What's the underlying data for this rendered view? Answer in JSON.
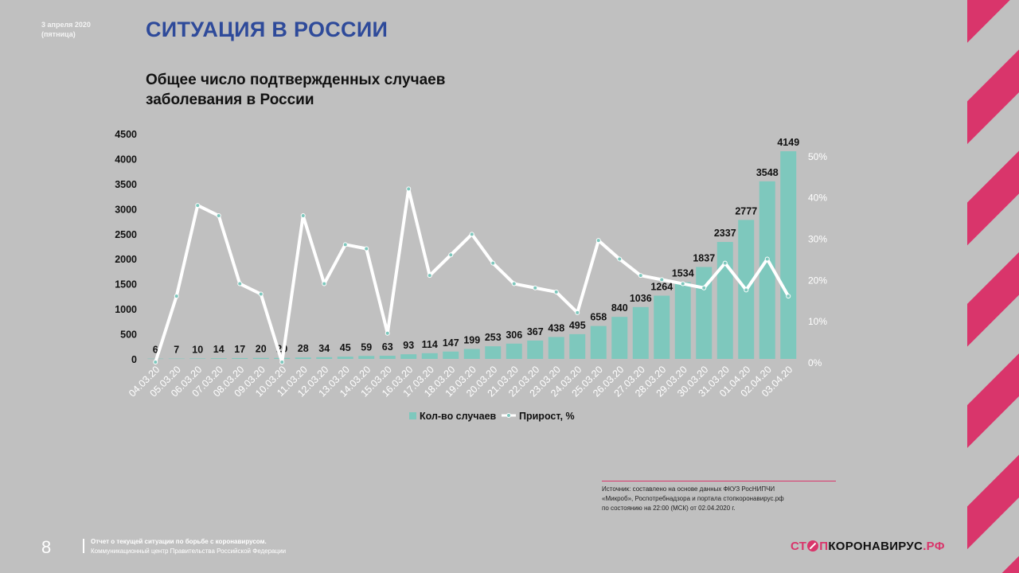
{
  "header": {
    "date_line1": "3 апреля 2020",
    "date_line2": "(пятница)",
    "title": "СИТУАЦИЯ В РОССИИ",
    "subtitle": "Общее число подтвержденных случаев заболевания в России"
  },
  "chart_data": {
    "type": "bar+line",
    "title": "Общее число подтвержденных случаев заболевания в России",
    "categories": [
      "04.03.20",
      "05.03.20",
      "06.03.20",
      "07.03.20",
      "08.03.20",
      "09.03.20",
      "10.03.20",
      "11.03.20",
      "12.03.20",
      "13.03.20",
      "14.03.20",
      "15.03.20",
      "16.03.20",
      "17.03.20",
      "18.03.20",
      "19.03.20",
      "20.03.20",
      "21.03.20",
      "22.03.20",
      "23.03.20",
      "24.03.20",
      "25.03.20",
      "26.03.20",
      "27.03.20",
      "28.03.20",
      "29.03.20",
      "30.03.20",
      "31.03.20",
      "01.04.20",
      "02.04.20",
      "03.04.20"
    ],
    "series": [
      {
        "name": "Кол-во случаев",
        "type": "bar",
        "axis": "left",
        "color": "#7ec8bd",
        "values": [
          6,
          7,
          10,
          14,
          17,
          20,
          20,
          28,
          34,
          45,
          59,
          63,
          93,
          114,
          147,
          199,
          253,
          306,
          367,
          438,
          495,
          658,
          840,
          1036,
          1264,
          1534,
          1837,
          2337,
          2777,
          3548,
          4149
        ]
      },
      {
        "name": "Прирост, %",
        "type": "line",
        "axis": "right",
        "color": "#ffffff",
        "values": [
          0,
          16,
          38,
          35.5,
          19,
          16.5,
          0,
          35.5,
          19,
          28.5,
          27.5,
          7,
          42,
          21,
          26,
          31,
          24,
          19,
          18,
          17,
          12,
          29.5,
          25,
          21,
          20,
          19,
          18,
          24,
          17.5,
          25,
          16
        ]
      }
    ],
    "left_axis": {
      "ylim": [
        0,
        4500
      ],
      "ticks": [
        0,
        500,
        1000,
        1500,
        2000,
        2500,
        3000,
        3500,
        4000,
        4500
      ]
    },
    "right_axis": {
      "ylim": [
        0,
        55
      ],
      "ticks": [
        "0%",
        "10%",
        "20%",
        "30%",
        "40%",
        "50%"
      ]
    },
    "legend": {
      "position": "bottom",
      "bar_label": "Кол-во случаев",
      "line_label": "Прирост, %"
    }
  },
  "source": {
    "line1": "Источник: составлено на основе данных ФКУЗ РосНИПЧИ",
    "line2": "«Микроб», Роспотребнадзора и портала стопкоронавирус.рф",
    "line3": "по состоянию на 22:00 (МСК) от 02.04.2020 г."
  },
  "footer": {
    "page_number": "8",
    "line1": "Отчет о текущей ситуации по борьбе с коронавирусом.",
    "line2": "Коммуникационный центр Правительства Российской Федерации"
  },
  "logo": {
    "part1": "СТ",
    "part2": "П",
    "part3": "КОРОНАВИРУС",
    "part4": ".РФ",
    "brand_color": "#d9356b"
  }
}
